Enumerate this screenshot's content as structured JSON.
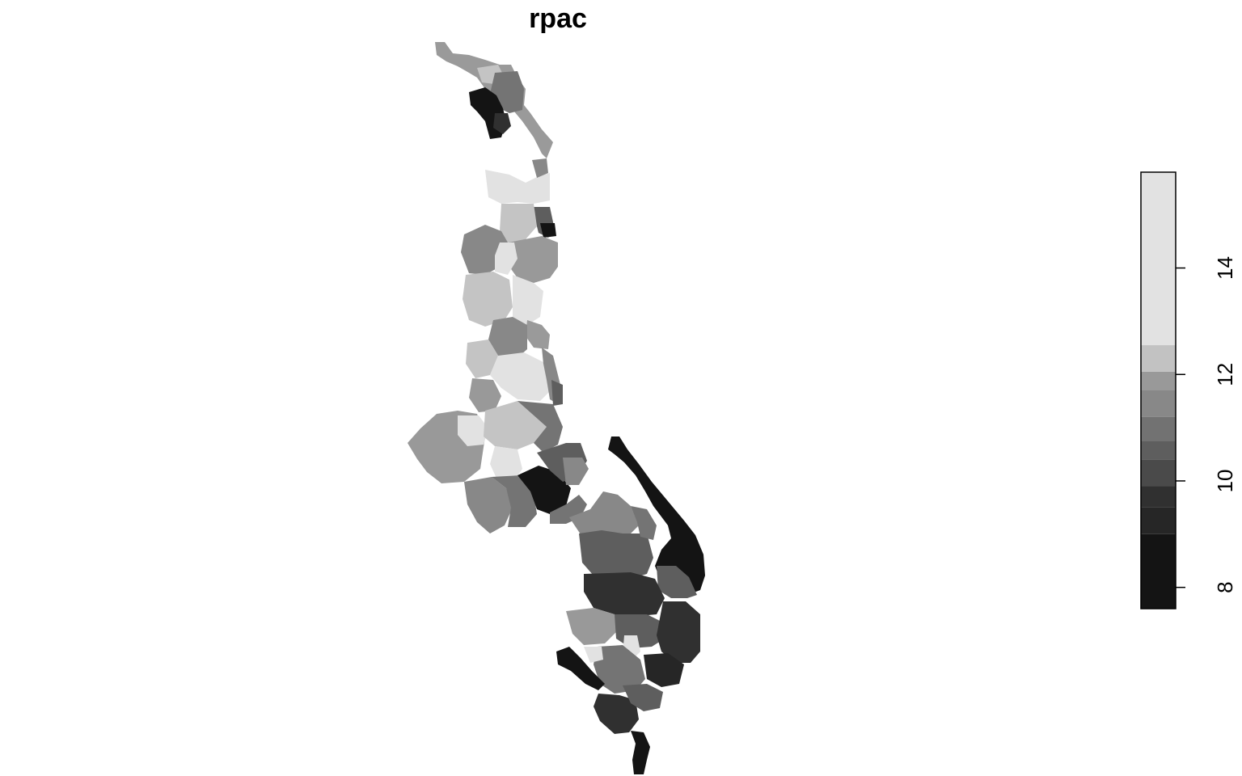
{
  "title": "rpac",
  "legend": {
    "ticks": [
      {
        "value": 8,
        "label": "8"
      },
      {
        "value": 10,
        "label": "10"
      },
      {
        "value": 12,
        "label": "12"
      },
      {
        "value": 14,
        "label": "14"
      }
    ],
    "range": [
      7.6,
      15.8
    ],
    "breaks": [
      {
        "from": 7.6,
        "to": 9.0,
        "color": "#141414"
      },
      {
        "from": 9.0,
        "to": 9.5,
        "color": "#262626"
      },
      {
        "from": 9.5,
        "to": 9.9,
        "color": "#303030"
      },
      {
        "from": 9.9,
        "to": 10.4,
        "color": "#4a4a4a"
      },
      {
        "from": 10.4,
        "to": 10.75,
        "color": "#5e5e5e"
      },
      {
        "from": 10.75,
        "to": 11.2,
        "color": "#727272"
      },
      {
        "from": 11.2,
        "to": 11.7,
        "color": "#888888"
      },
      {
        "from": 11.7,
        "to": 12.05,
        "color": "#999999"
      },
      {
        "from": 12.05,
        "to": 12.55,
        "color": "#c2c2c2"
      },
      {
        "from": 12.55,
        "to": 15.8,
        "color": "#e2e2e2"
      }
    ]
  },
  "colors": {
    "background": "#ffffff",
    "axis": "#000000"
  }
}
